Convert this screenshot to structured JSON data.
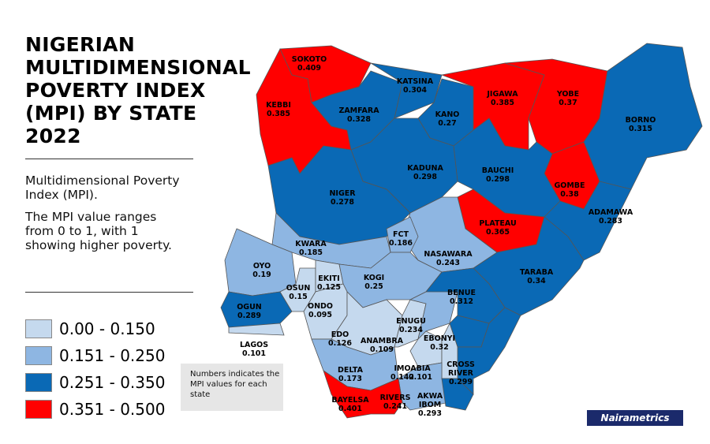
{
  "title": "NIGERIAN MULTIDIMENSIONAL POVERTY INDEX (MPI) BY STATE 2022",
  "description_1": "Multidimensional Poverty Index (MPI).",
  "description_2": "The MPI value ranges from 0 to 1, with 1 showing higher poverty.",
  "note": "Numbers indicates the MPI values for each state",
  "logo": "Nairametrics",
  "legend": [
    {
      "label": "0.00 - 0.150",
      "color": "#c5d9ee"
    },
    {
      "label": "0.151 - 0.250",
      "color": "#8eb6e2"
    },
    {
      "label": "0.251 - 0.350",
      "color": "#0a69b5"
    },
    {
      "label": "0.351 - 0.500",
      "color": "#ff0000"
    }
  ],
  "states": [
    {
      "name": "SOKOTO",
      "value": "0.409"
    },
    {
      "name": "KEBBI",
      "value": "0.385"
    },
    {
      "name": "ZAMFARA",
      "value": "0.328"
    },
    {
      "name": "KATSINA",
      "value": "0.304"
    },
    {
      "name": "KANO",
      "value": "0.27"
    },
    {
      "name": "JIGAWA",
      "value": "0.385"
    },
    {
      "name": "YOBE",
      "value": "0.37"
    },
    {
      "name": "BORNO",
      "value": "0.315"
    },
    {
      "name": "GOMBE",
      "value": "0.38"
    },
    {
      "name": "BAUCHI",
      "value": "0.298"
    },
    {
      "name": "KADUNA",
      "value": "0.298"
    },
    {
      "name": "NIGER",
      "value": "0.278"
    },
    {
      "name": "PLATEAU",
      "value": "0.365"
    },
    {
      "name": "ADAMAWA",
      "value": "0.283"
    },
    {
      "name": "TARABA",
      "value": "0.34"
    },
    {
      "name": "NASAWARA",
      "value": "0.243"
    },
    {
      "name": "FCT",
      "value": "0.186"
    },
    {
      "name": "KWARA",
      "value": "0.185"
    },
    {
      "name": "OYO",
      "value": "0.19"
    },
    {
      "name": "OGUN",
      "value": "0.289"
    },
    {
      "name": "LAGOS",
      "value": "0.101"
    },
    {
      "name": "OSUN",
      "value": "0.15"
    },
    {
      "name": "EKITI",
      "value": "0.125"
    },
    {
      "name": "KOGI",
      "value": "0.25"
    },
    {
      "name": "ONDO",
      "value": "0.095"
    },
    {
      "name": "EDO",
      "value": "0.126"
    },
    {
      "name": "DELTA",
      "value": "0.173"
    },
    {
      "name": "ANAMBRA",
      "value": "0.109"
    },
    {
      "name": "ENUGU",
      "value": "0.234"
    },
    {
      "name": "BENUE",
      "value": "0.312"
    },
    {
      "name": "EBONYI",
      "value": "0.32"
    },
    {
      "name": "CROSS RIVER",
      "value": "0.299"
    },
    {
      "name": "IMO",
      "value": "0.142"
    },
    {
      "name": "ABIA",
      "value": "0.101"
    },
    {
      "name": "RIVERS",
      "value": "0.241"
    },
    {
      "name": "AKWA IBOM",
      "value": "0.293"
    },
    {
      "name": "BAYELSA",
      "value": "0.401"
    }
  ]
}
